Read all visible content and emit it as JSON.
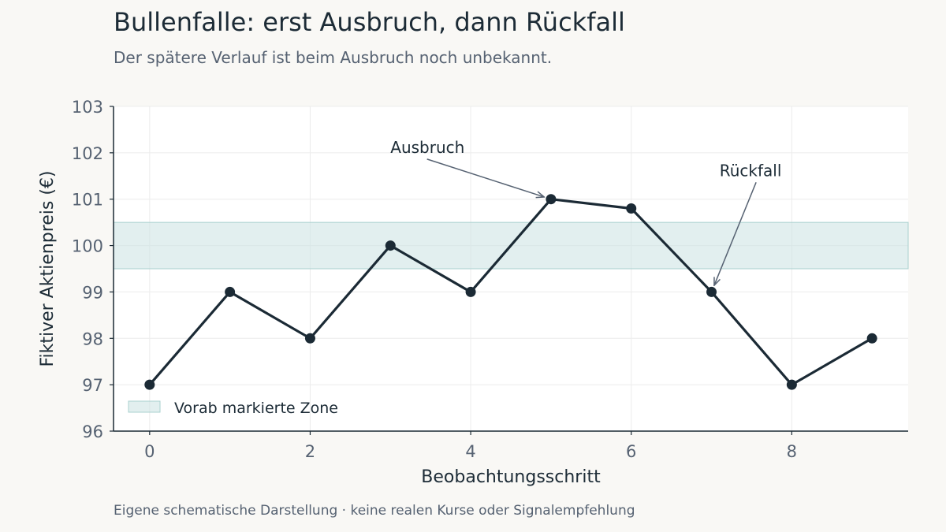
{
  "header": {
    "title": "Bullenfalle: erst Ausbruch, dann Rückfall",
    "subtitle": "Der spätere Verlauf ist beim Ausbruch noch unbekannt."
  },
  "footer": {
    "note": "Eigene schematische Darstellung · keine realen Kurse oder Signalempfehlung"
  },
  "chart_data": {
    "type": "line",
    "xlabel": "Beobachtungsschritt",
    "ylabel": "Fiktiver Aktienpreis (€)",
    "xlim": [
      -0.45,
      9.45
    ],
    "ylim": [
      96,
      103
    ],
    "x_ticks": [
      0,
      2,
      4,
      6,
      8
    ],
    "y_ticks": [
      96,
      97,
      98,
      99,
      100,
      101,
      102,
      103
    ],
    "grid": true,
    "series": [
      {
        "x": [
          0,
          1,
          2,
          3,
          4,
          5,
          6,
          7,
          8,
          9
        ],
        "values": [
          97,
          99,
          98,
          100,
          99,
          101,
          100.8,
          99,
          97,
          98
        ]
      }
    ],
    "zone": {
      "label": "Vorab markierte Zone",
      "y_range": [
        99.5,
        100.5
      ]
    },
    "annotations": [
      {
        "text": "Ausbruch",
        "target": [
          5,
          101
        ],
        "text_at": [
          3,
          102
        ]
      },
      {
        "text": "Rückfall",
        "target": [
          7,
          99
        ],
        "text_at": [
          7.1,
          101.5
        ]
      }
    ],
    "legend_position": "lower-left",
    "colors": {
      "line": "#1b2a35",
      "zone": "#cfe5e4",
      "zone_border": "#a9d0cf",
      "arrow": "#566272",
      "grid": "#ececec"
    }
  }
}
